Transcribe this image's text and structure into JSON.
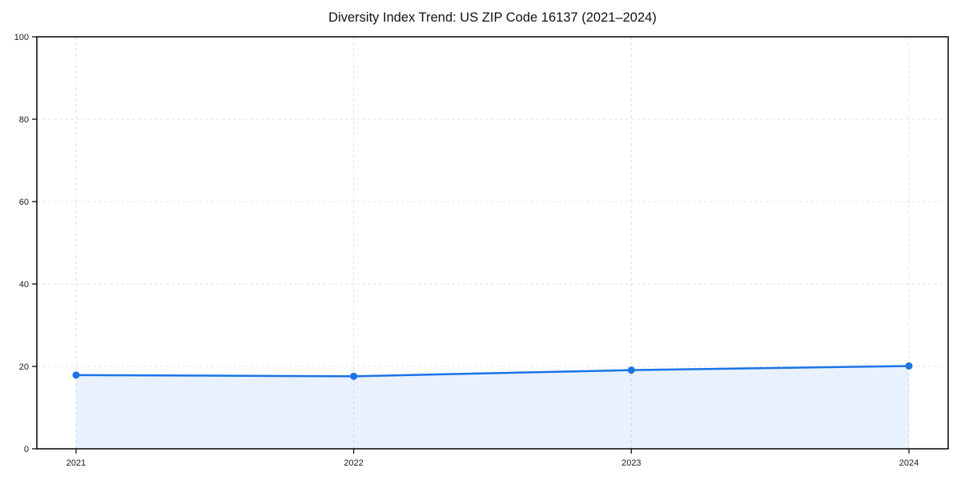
{
  "chart_data": {
    "type": "area",
    "title": "Diversity Index Trend: US ZIP Code 16137 (2021–2024)",
    "categories": [
      "2021",
      "2022",
      "2023",
      "2024"
    ],
    "series": [
      {
        "name": "Diversity Index",
        "values": [
          17.9,
          17.6,
          19.1,
          20.1
        ]
      }
    ],
    "xlabel": "",
    "ylabel": "",
    "ylim": [
      0,
      100
    ],
    "yticks": [
      0,
      20,
      40,
      60,
      80,
      100
    ],
    "grid": true,
    "grid_style": "dashed",
    "legend_position": "none",
    "line_color": "#1a73e8",
    "marker_color": "#1a73e8",
    "fill_color": "rgba(26, 115, 232, 0.10)",
    "grid_color": "#e3e3e3",
    "axis_color": "#1a1a1a",
    "spine_color": "#111111"
  }
}
